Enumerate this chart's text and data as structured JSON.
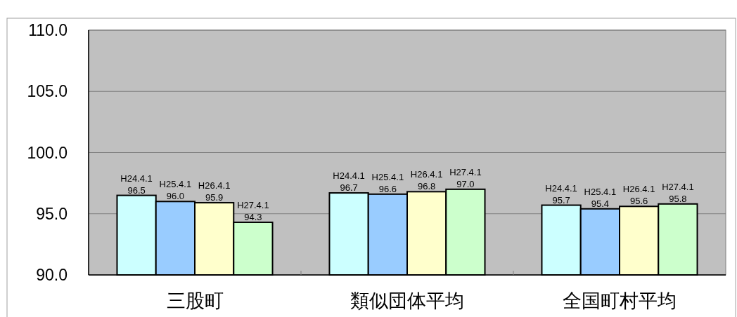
{
  "chart_data": {
    "type": "bar",
    "categories": [
      "三股町",
      "類似団体平均",
      "全国町村平均"
    ],
    "series": [
      {
        "name": "H24.4.1",
        "color": "#ccffff",
        "values": [
          96.5,
          96.7,
          95.7
        ],
        "value_labels": [
          "96.5",
          "96.7",
          "95.7"
        ]
      },
      {
        "name": "H25.4.1",
        "color": "#99ccff",
        "values": [
          96.0,
          96.6,
          95.4
        ],
        "value_labels": [
          "96.0",
          "96.6",
          "95.4"
        ]
      },
      {
        "name": "H26.4.1",
        "color": "#ffffcc",
        "values": [
          95.9,
          96.8,
          95.6
        ],
        "value_labels": [
          "95.9",
          "96.8",
          "95.6"
        ]
      },
      {
        "name": "H27.4.1",
        "color": "#ccffcc",
        "values": [
          94.3,
          97.0,
          95.8
        ],
        "value_labels": [
          "94.3",
          "97.0",
          "95.8"
        ]
      }
    ],
    "ylim": [
      90,
      110
    ],
    "yticks": [
      {
        "value": 90,
        "label": "90.0"
      },
      {
        "value": 95,
        "label": "95.0"
      },
      {
        "value": 100,
        "label": "100.0"
      },
      {
        "value": 105,
        "label": "105.0"
      },
      {
        "value": 110,
        "label": "110.0"
      }
    ],
    "grid": "y"
  }
}
